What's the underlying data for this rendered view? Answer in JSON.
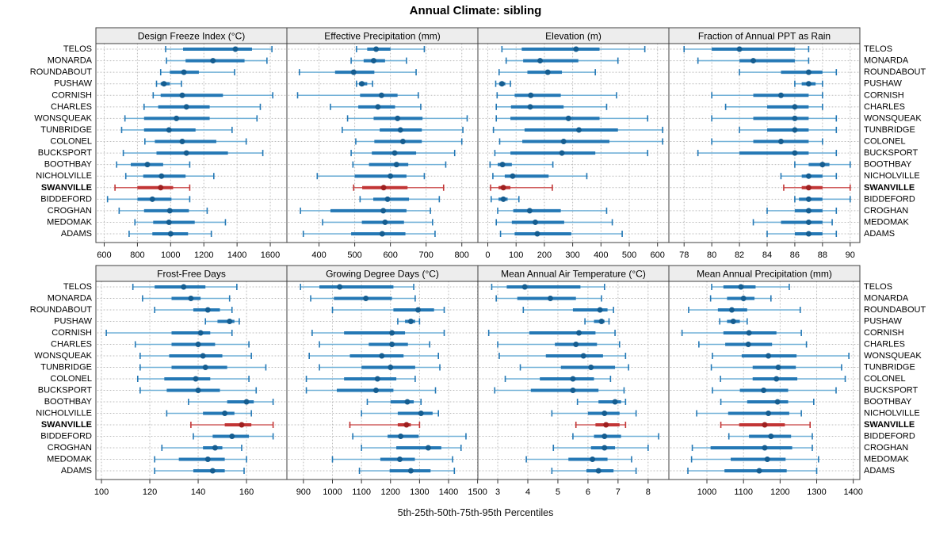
{
  "title": "Annual Climate: sibling",
  "caption": "5th-25th-50th-75th-95th Percentiles",
  "highlight_station": "SWANVILLE",
  "stations": [
    "TELOS",
    "MONARDA",
    "ROUNDABOUT",
    "PUSHAW",
    "CORNISH",
    "CHARLES",
    "WONSQUEAK",
    "TUNBRIDGE",
    "COLONEL",
    "BUCKSPORT",
    "BOOTHBAY",
    "NICHOLVILLE",
    "SWANVILLE",
    "BIDDEFORD",
    "CROGHAN",
    "MEDOMAK",
    "ADAMS"
  ],
  "colors": {
    "blue_range": "#74b2d8",
    "blue_main": "#2478b5",
    "blue_dot": "#155d90",
    "red_range": "#d06060",
    "red_main": "#c23535",
    "red_dot": "#9e2020",
    "grid": "#bdbdbd",
    "border": "#404040",
    "strip_bg": "#ededed",
    "tick": "#333333"
  },
  "chart_data": {
    "type": "scatter",
    "subtype": "percentile-interval-dotplot",
    "percentiles": [
      5,
      25,
      50,
      75,
      95
    ],
    "layout": {
      "rows": 2,
      "cols": 4,
      "legend": "none",
      "grid": "dotted"
    },
    "row_labels_sides": [
      "left",
      "right"
    ],
    "panels": [
      {
        "title": "Design Freeze Index (°C)",
        "row": 0,
        "col": 0,
        "ticks": [
          600,
          800,
          1000,
          1200,
          1400,
          1600
        ],
        "xlim": [
          550,
          1700
        ],
        "values": [
          [
            970,
            1075,
            1390,
            1490,
            1610
          ],
          [
            975,
            1090,
            1255,
            1445,
            1580
          ],
          [
            940,
            995,
            1080,
            1170,
            1385
          ],
          [
            915,
            940,
            960,
            995,
            1065
          ],
          [
            895,
            940,
            1070,
            1315,
            1615
          ],
          [
            840,
            925,
            1095,
            1235,
            1540
          ],
          [
            725,
            840,
            1035,
            1235,
            1520
          ],
          [
            705,
            840,
            990,
            1150,
            1370
          ],
          [
            845,
            905,
            1070,
            1275,
            1455
          ],
          [
            715,
            915,
            1095,
            1345,
            1555
          ],
          [
            675,
            760,
            860,
            955,
            1115
          ],
          [
            730,
            835,
            945,
            1090,
            1260
          ],
          [
            665,
            800,
            940,
            1015,
            1115
          ],
          [
            620,
            800,
            890,
            1005,
            1115
          ],
          [
            690,
            840,
            995,
            1110,
            1220
          ],
          [
            785,
            895,
            990,
            1145,
            1330
          ],
          [
            750,
            890,
            1000,
            1105,
            1245
          ]
        ]
      },
      {
        "title": "Effective Precipitation (mm)",
        "row": 0,
        "col": 1,
        "ticks": [
          400,
          500,
          600,
          700,
          800
        ],
        "xlim": [
          310,
          845
        ],
        "values": [
          [
            505,
            535,
            560,
            600,
            695
          ],
          [
            490,
            525,
            553,
            585,
            645
          ],
          [
            345,
            445,
            497,
            555,
            672
          ],
          [
            505,
            512,
            520,
            535,
            550
          ],
          [
            340,
            515,
            575,
            620,
            678
          ],
          [
            432,
            510,
            565,
            613,
            685
          ],
          [
            480,
            553,
            620,
            690,
            815
          ],
          [
            465,
            570,
            628,
            688,
            803
          ],
          [
            503,
            555,
            635,
            688,
            800
          ],
          [
            490,
            548,
            612,
            672,
            780
          ],
          [
            495,
            540,
            617,
            650,
            755
          ],
          [
            395,
            500,
            600,
            645,
            695
          ],
          [
            497,
            521,
            581,
            648,
            749
          ],
          [
            515,
            552,
            592,
            652,
            737
          ],
          [
            348,
            432,
            580,
            645,
            712
          ],
          [
            410,
            520,
            585,
            638,
            718
          ],
          [
            356,
            490,
            577,
            642,
            725
          ]
        ]
      },
      {
        "title": "Elevation (m)",
        "row": 0,
        "col": 2,
        "ticks": [
          0,
          100,
          200,
          300,
          400,
          500,
          600
        ],
        "xlim": [
          -35,
          640
        ],
        "values": [
          [
            50,
            120,
            312,
            395,
            555
          ],
          [
            65,
            125,
            185,
            320,
            460
          ],
          [
            40,
            140,
            212,
            262,
            380
          ],
          [
            28,
            40,
            50,
            62,
            80
          ],
          [
            33,
            95,
            152,
            258,
            455
          ],
          [
            30,
            82,
            150,
            268,
            420
          ],
          [
            30,
            80,
            285,
            395,
            565
          ],
          [
            20,
            130,
            322,
            460,
            618
          ],
          [
            42,
            122,
            268,
            430,
            618
          ],
          [
            25,
            80,
            262,
            380,
            565
          ],
          [
            8,
            35,
            52,
            85,
            230
          ],
          [
            18,
            60,
            88,
            215,
            350
          ],
          [
            10,
            38,
            55,
            80,
            228
          ],
          [
            12,
            38,
            55,
            70,
            110
          ],
          [
            35,
            90,
            148,
            258,
            420
          ],
          [
            30,
            85,
            168,
            270,
            440
          ],
          [
            45,
            95,
            175,
            295,
            475
          ]
        ]
      },
      {
        "title": "Fraction of Annual PPT as Rain",
        "row": 0,
        "col": 3,
        "ticks": [
          78,
          80,
          82,
          84,
          86,
          88,
          90
        ],
        "xlim": [
          76.9,
          90.7
        ],
        "values": [
          [
            78,
            80,
            82,
            86,
            87
          ],
          [
            79,
            82,
            83,
            86,
            87
          ],
          [
            82,
            85,
            87,
            88,
            89
          ],
          [
            86,
            86.5,
            87,
            87.5,
            88
          ],
          [
            80,
            83,
            85,
            87,
            88
          ],
          [
            81,
            84,
            86,
            87,
            88
          ],
          [
            80,
            83,
            86,
            87,
            89
          ],
          [
            82,
            84,
            86,
            87,
            89
          ],
          [
            80,
            83,
            85,
            87,
            88
          ],
          [
            79,
            82,
            86,
            87,
            89
          ],
          [
            86,
            87,
            88,
            88.5,
            90
          ],
          [
            85,
            86.5,
            87,
            88,
            89
          ],
          [
            85.2,
            86.5,
            87,
            88,
            90
          ],
          [
            86,
            86.3,
            87,
            88,
            90
          ],
          [
            84,
            86,
            87,
            88,
            89
          ],
          [
            83,
            85,
            87,
            88,
            88.7
          ],
          [
            84,
            86,
            87,
            88,
            89
          ]
        ]
      },
      {
        "title": "Frost-Free Days",
        "row": 1,
        "col": 0,
        "ticks": [
          100,
          120,
          140,
          160
        ],
        "xlim": [
          97.7,
          176.7
        ],
        "values": [
          [
            113,
            122,
            134,
            143,
            156
          ],
          [
            117,
            129,
            137,
            141,
            153
          ],
          [
            122,
            138,
            144,
            149,
            154
          ],
          [
            143,
            148,
            153,
            155,
            157
          ],
          [
            102,
            129,
            141,
            145,
            154
          ],
          [
            114,
            129,
            140,
            147,
            161
          ],
          [
            116,
            128,
            142,
            150,
            162
          ],
          [
            116,
            129,
            143,
            152,
            168
          ],
          [
            115,
            126,
            139,
            145,
            161
          ],
          [
            116,
            127,
            140,
            149,
            164
          ],
          [
            136,
            152,
            160,
            163,
            171
          ],
          [
            127,
            142,
            151,
            155,
            162
          ],
          [
            137,
            151,
            158,
            162,
            171
          ],
          [
            138,
            146,
            154,
            161,
            171
          ],
          [
            125,
            142,
            147,
            150,
            158
          ],
          [
            122,
            132,
            144,
            151,
            160
          ],
          [
            122,
            138,
            146,
            151,
            159
          ]
        ]
      },
      {
        "title": "Growing Degree Days (°C)",
        "row": 1,
        "col": 1,
        "ticks": [
          900,
          1000,
          1100,
          1200,
          1300,
          1400,
          1500
        ],
        "xlim": [
          843,
          1501
        ],
        "values": [
          [
            890,
            955,
            1025,
            1210,
            1280
          ],
          [
            925,
            1005,
            1115,
            1205,
            1285
          ],
          [
            1000,
            1210,
            1295,
            1350,
            1385
          ],
          [
            1225,
            1250,
            1270,
            1285,
            1300
          ],
          [
            930,
            1040,
            1205,
            1250,
            1385
          ],
          [
            955,
            1125,
            1205,
            1260,
            1335
          ],
          [
            920,
            1060,
            1170,
            1245,
            1365
          ],
          [
            955,
            1100,
            1200,
            1285,
            1370
          ],
          [
            910,
            1040,
            1155,
            1220,
            1285
          ],
          [
            910,
            1015,
            1150,
            1210,
            1355
          ],
          [
            1120,
            1200,
            1258,
            1280,
            1305
          ],
          [
            1100,
            1225,
            1305,
            1345,
            1365
          ],
          [
            1060,
            1225,
            1255,
            1270,
            1300
          ],
          [
            1070,
            1190,
            1235,
            1297,
            1460
          ],
          [
            1100,
            1220,
            1330,
            1375,
            1443
          ],
          [
            1000,
            1165,
            1232,
            1284,
            1414
          ],
          [
            1093,
            1197,
            1270,
            1338,
            1420
          ]
        ]
      },
      {
        "title": "Mean Annual Air Temperature (°C)",
        "row": 1,
        "col": 2,
        "ticks": [
          3,
          4,
          5,
          6,
          7,
          8
        ],
        "xlim": [
          2.34,
          8.69
        ],
        "values": [
          [
            2.8,
            3.3,
            3.9,
            5.75,
            6.55
          ],
          [
            2.95,
            3.65,
            4.75,
            5.6,
            6.45
          ],
          [
            3.85,
            5.5,
            6.4,
            6.65,
            6.85
          ],
          [
            5.9,
            6.2,
            6.45,
            6.55,
            6.7
          ],
          [
            2.7,
            4.05,
            5.7,
            6.25,
            6.9
          ],
          [
            3.0,
            4.9,
            5.6,
            6.3,
            7.05
          ],
          [
            3.05,
            4.6,
            5.85,
            6.5,
            7.25
          ],
          [
            3.75,
            5.1,
            6.1,
            6.9,
            7.35
          ],
          [
            3.25,
            4.4,
            5.5,
            6.2,
            6.75
          ],
          [
            2.9,
            4.1,
            5.5,
            6.35,
            7.2
          ],
          [
            5.65,
            6.35,
            6.9,
            7.1,
            7.25
          ],
          [
            4.8,
            6.0,
            6.55,
            7.05,
            7.6
          ],
          [
            5.6,
            6.25,
            6.6,
            7.05,
            7.25
          ],
          [
            5.5,
            6.2,
            6.55,
            7.1,
            8.35
          ],
          [
            4.85,
            6.1,
            6.55,
            6.9,
            8.0
          ],
          [
            3.95,
            5.35,
            6.15,
            6.65,
            7.45
          ],
          [
            4.8,
            5.95,
            6.35,
            6.85,
            7.6
          ]
        ]
      },
      {
        "title": "Mean Annual Precipitation (mm)",
        "row": 1,
        "col": 3,
        "ticks": [
          1000,
          1100,
          1200,
          1300,
          1400
        ],
        "xlim": [
          896,
          1418
        ],
        "values": [
          [
            1013,
            1045,
            1093,
            1133,
            1225
          ],
          [
            1010,
            1055,
            1100,
            1130,
            1175
          ],
          [
            950,
            1030,
            1068,
            1110,
            1255
          ],
          [
            1035,
            1055,
            1072,
            1090,
            1110
          ],
          [
            932,
            1045,
            1115,
            1190,
            1258
          ],
          [
            978,
            1050,
            1113,
            1178,
            1272
          ],
          [
            1015,
            1095,
            1168,
            1245,
            1388
          ],
          [
            1012,
            1125,
            1195,
            1243,
            1368
          ],
          [
            1037,
            1125,
            1190,
            1247,
            1378
          ],
          [
            1015,
            1090,
            1155,
            1222,
            1353
          ],
          [
            1038,
            1110,
            1193,
            1222,
            1292
          ],
          [
            972,
            1058,
            1168,
            1225,
            1258
          ],
          [
            1038,
            1088,
            1158,
            1213,
            1282
          ],
          [
            1060,
            1115,
            1175,
            1230,
            1288
          ],
          [
            960,
            1010,
            1158,
            1233,
            1288
          ],
          [
            958,
            1065,
            1165,
            1215,
            1305
          ],
          [
            948,
            1048,
            1143,
            1218,
            1300
          ]
        ]
      }
    ]
  }
}
